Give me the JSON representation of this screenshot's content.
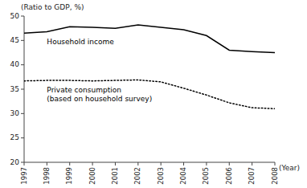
{
  "chart_data": {
    "type": "line",
    "x": [
      1997,
      1998,
      1999,
      2000,
      2001,
      2002,
      2003,
      2004,
      2005,
      2006,
      2007,
      2008
    ],
    "series": [
      {
        "color": "#000000",
        "line_style": "solid",
        "values": [
          46.5,
          46.8,
          47.8,
          47.7,
          47.5,
          48.2,
          47.7,
          47.2,
          46.0,
          43.0,
          42.7,
          42.5
        ]
      },
      {
        "color": "#000000",
        "line_style": "dotted",
        "values": [
          36.7,
          36.8,
          36.8,
          36.7,
          36.8,
          36.9,
          36.5,
          35.2,
          33.8,
          32.2,
          31.2,
          31.0
        ]
      }
    ],
    "annotations": [
      "Household income",
      "Private consumption\n(based on household survey)"
    ],
    "x_label": "(Year)",
    "y_label": "(Ratio to GDP, %)",
    "xlim": [
      1997,
      2008
    ],
    "xticks": [
      1997,
      1998,
      1999,
      2000,
      2001,
      2002,
      2003,
      2004,
      2005,
      2006,
      2007,
      2008
    ],
    "ylim": [
      20,
      50
    ],
    "yticks": [
      20,
      25,
      30,
      35,
      40,
      45,
      50
    ],
    "grid": false
  }
}
